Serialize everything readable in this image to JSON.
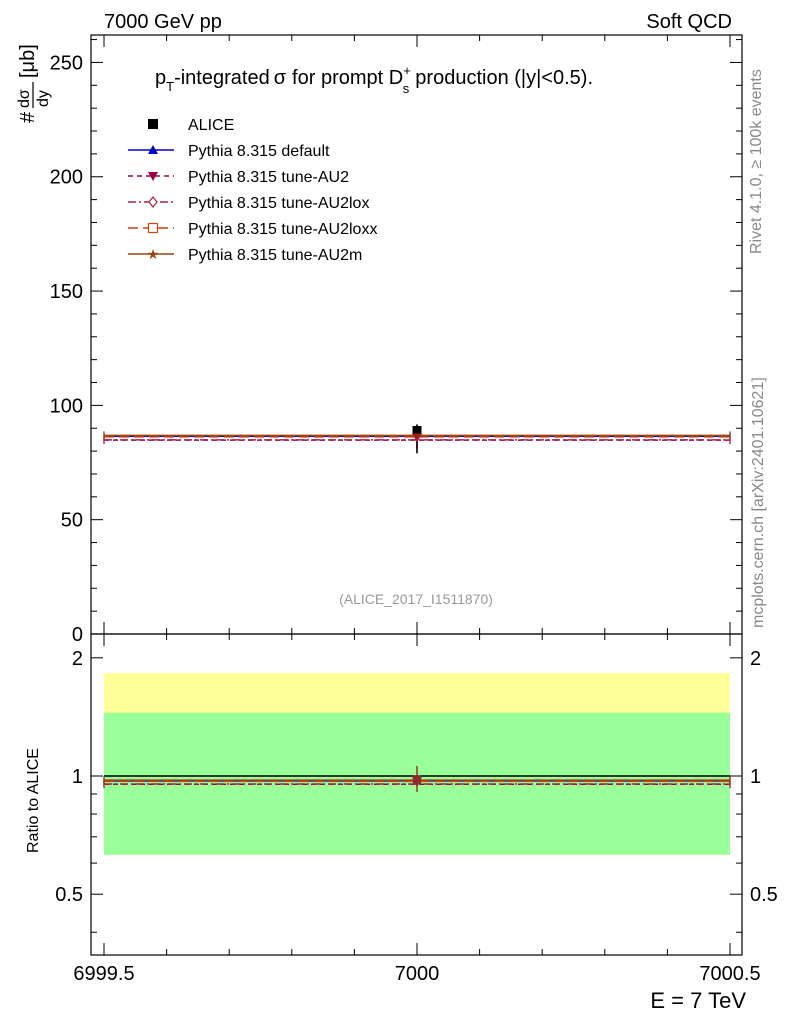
{
  "header": {
    "left": "7000 GeV pp",
    "right": "Soft QCD"
  },
  "side": {
    "rivet": "Rivet 4.1.0, ≥ 100k events",
    "mcplots": "mcplots.cern.ch [arXiv:2401.10621]"
  },
  "chart_data": [
    {
      "type": "scatter",
      "panel": "main",
      "title": "pT-integrated σ for prompt Ds+ production (|y|<0.5).",
      "title_parts": {
        "p": "p",
        "p_sub": "T",
        "mid": "-integrated",
        "sigma": "σ",
        "text2": "for prompt D",
        "d_sub": "s",
        "d_sup": "+",
        "tail": "production (|y|<0.5)."
      },
      "ylabel_parts": {
        "hash": "#",
        "num": "dσ",
        "den": "dy",
        "unit": "[μb]"
      },
      "xlim": [
        6999.5,
        7000.5
      ],
      "ylim": [
        0,
        262
      ],
      "yticks": [
        50,
        100,
        150,
        200,
        250
      ],
      "ytick_labels": [
        "50",
        "100",
        "150",
        "200",
        "250"
      ],
      "zero_label": "0",
      "watermark": "(ALICE_2017_I1511870)",
      "data": {
        "name": "ALICE",
        "x": 7000,
        "y": 89,
        "yerr_low": 10,
        "yerr_high": 2.5
      },
      "series": [
        {
          "name": "Pythia 8.315 default",
          "y": 86.5,
          "err": 5,
          "color": "#0000cc",
          "dash": "solid",
          "marker": "triangle-up"
        },
        {
          "name": "Pythia 8.315 tune-AU2",
          "y": 84.8,
          "err": 5,
          "color": "#990044",
          "dash": "dashed",
          "marker": "triangle-down"
        },
        {
          "name": "Pythia 8.315 tune-AU2lox",
          "y": 84.9,
          "err": 5,
          "color": "#aa2244",
          "dash": "dashdot",
          "marker": "diamond-open"
        },
        {
          "name": "Pythia 8.315 tune-AU2loxx",
          "y": 86.2,
          "err": 5,
          "color": "#cc4411",
          "dash": "longdash",
          "marker": "square-open"
        },
        {
          "name": "Pythia 8.315 tune-AU2m",
          "y": 86.9,
          "err": 5,
          "color": "#994411",
          "dash": "solid",
          "marker": "star"
        }
      ]
    },
    {
      "type": "scatter",
      "panel": "ratio",
      "ylabel": "Ratio to ALICE",
      "xlabel": "E = 7 TeV",
      "xlim": [
        6999.5,
        7000.5
      ],
      "ylim": [
        0.35,
        2.3
      ],
      "yticks": [
        0.5,
        1,
        2
      ],
      "ytick_labels": [
        "0.5",
        "1",
        "2"
      ],
      "xticks": [
        6999.5,
        7000,
        7000.5
      ],
      "xtick_labels": [
        "6999.5",
        "7000",
        "7000.5"
      ],
      "bands": [
        {
          "name": "yellow-band",
          "low": 0.63,
          "high": 1.83,
          "color": "#ffff99"
        },
        {
          "name": "green-band",
          "low": 0.63,
          "high": 1.45,
          "color": "#99ff99"
        }
      ],
      "ratios": [
        {
          "name": "Pythia 8.315 default",
          "y": 0.972,
          "color": "#0000cc",
          "dash": "solid"
        },
        {
          "name": "Pythia 8.315 tune-AU2",
          "y": 0.953,
          "color": "#990044",
          "dash": "dashed"
        },
        {
          "name": "Pythia 8.315 tune-AU2lox",
          "y": 0.954,
          "color": "#aa2244",
          "dash": "dashdot"
        },
        {
          "name": "Pythia 8.315 tune-AU2loxx",
          "y": 0.969,
          "color": "#cc4411",
          "dash": "longdash"
        },
        {
          "name": "Pythia 8.315 tune-AU2m",
          "y": 0.976,
          "color": "#994411",
          "dash": "solid"
        }
      ],
      "ratio_err": 0.06
    }
  ]
}
